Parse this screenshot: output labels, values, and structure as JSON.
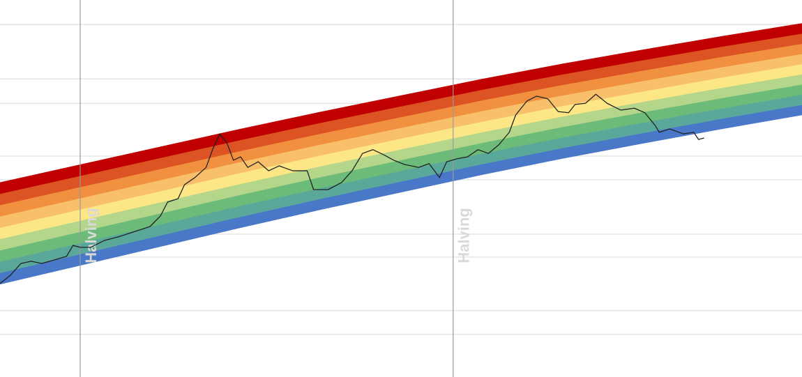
{
  "chart_data": {
    "type": "rainbow",
    "xlim": [
      0,
      100
    ],
    "ylim": [
      0,
      100
    ],
    "yticks": [
      93.5,
      79.1,
      72.6,
      58.6,
      52.3,
      37.9,
      31.8,
      17.6,
      11.3
    ],
    "grid": true,
    "band_x": [
      0,
      10,
      20,
      30,
      40,
      50,
      60,
      70,
      80,
      90,
      100
    ],
    "band_base": [
      24.6,
      29.6,
      34.6,
      39.6,
      44.4,
      49.0,
      53.6,
      57.9,
      61.9,
      65.8,
      69.5
    ],
    "bands": [
      {
        "color": "#4a78c8",
        "values": [
          3.0,
          2.97,
          2.94,
          2.91,
          2.88,
          2.85,
          2.82,
          2.79,
          2.76,
          2.73,
          2.7
        ]
      },
      {
        "color": "#5aa89a",
        "values": [
          3.0,
          2.97,
          2.94,
          2.91,
          2.88,
          2.85,
          2.82,
          2.79,
          2.76,
          2.73,
          2.7
        ]
      },
      {
        "color": "#6dbb78",
        "values": [
          3.0,
          2.97,
          2.94,
          2.91,
          2.88,
          2.85,
          2.82,
          2.79,
          2.76,
          2.73,
          2.7
        ]
      },
      {
        "color": "#b3d68a",
        "values": [
          3.0,
          2.97,
          2.94,
          2.91,
          2.88,
          2.85,
          2.82,
          2.79,
          2.76,
          2.73,
          2.7
        ]
      },
      {
        "color": "#fde686",
        "values": [
          3.0,
          2.97,
          2.94,
          2.91,
          2.88,
          2.85,
          2.82,
          2.79,
          2.76,
          2.73,
          2.7
        ]
      },
      {
        "color": "#f9c06c",
        "values": [
          3.0,
          2.97,
          2.94,
          2.91,
          2.88,
          2.85,
          2.82,
          2.79,
          2.76,
          2.73,
          2.7
        ]
      },
      {
        "color": "#f1913f",
        "values": [
          3.0,
          2.97,
          2.94,
          2.91,
          2.88,
          2.85,
          2.82,
          2.79,
          2.76,
          2.73,
          2.7
        ]
      },
      {
        "color": "#dd5424",
        "values": [
          3.0,
          2.97,
          2.94,
          2.91,
          2.88,
          2.85,
          2.82,
          2.79,
          2.76,
          2.73,
          2.7
        ]
      },
      {
        "color": "#c00000",
        "values": [
          3.0,
          2.97,
          2.94,
          2.91,
          2.88,
          2.85,
          2.82,
          2.79,
          2.76,
          2.73,
          2.7
        ]
      }
    ],
    "price": {
      "color": "#222222",
      "x": [
        0,
        1.3,
        2.6,
        3.9,
        5.2,
        7.0,
        8.3,
        9.1,
        10,
        11.3,
        13,
        14.8,
        16.1,
        17.4,
        18.7,
        20,
        20.9,
        22.2,
        23,
        24.3,
        25.7,
        26.5,
        27.4,
        28.3,
        29.1,
        30,
        30.9,
        32.2,
        33.5,
        34.8,
        36.5,
        38.3,
        39.1,
        40.9,
        42.6,
        43.9,
        45.2,
        46.5,
        47.8,
        49.1,
        50.4,
        52.2,
        53.5,
        54.8,
        55.7,
        57,
        58.3,
        59.6,
        60.9,
        62.2,
        63.5,
        64.3,
        65.7,
        66.9,
        68.3,
        69.6,
        70.9,
        71.7,
        73,
        74.3,
        75.7,
        77.4,
        79.1,
        80.4,
        81.7,
        82.2,
        83.5,
        85.2,
        86.5,
        87.1,
        87.8
      ],
      "values": [
        24.8,
        27.0,
        30.1,
        30.7,
        30.1,
        31.2,
        32.0,
        34.9,
        34.4,
        34.4,
        36.2,
        37.2,
        38.1,
        39.0,
        39.9,
        42.7,
        46.4,
        47.3,
        51.0,
        52.9,
        55.6,
        60.3,
        64.5,
        62.1,
        57.5,
        58.4,
        55.6,
        57.1,
        54.7,
        56.0,
        54.7,
        54.7,
        49.7,
        49.7,
        51.6,
        54.7,
        59.3,
        60.3,
        59.0,
        57.5,
        56.4,
        55.6,
        56.6,
        52.9,
        57.1,
        57.9,
        58.4,
        60.3,
        59.3,
        61.6,
        64.9,
        69.5,
        73.2,
        74.5,
        73.8,
        70.4,
        70.1,
        72.3,
        72.6,
        75.0,
        72.6,
        70.8,
        71.3,
        70.1,
        66.7,
        64.9,
        65.8,
        64.5,
        64.9,
        63.0,
        63.4
      ]
    },
    "annotations": [
      {
        "text": "Halving",
        "x": 10
      },
      {
        "text": "Halving",
        "x": 56.5
      }
    ]
  }
}
